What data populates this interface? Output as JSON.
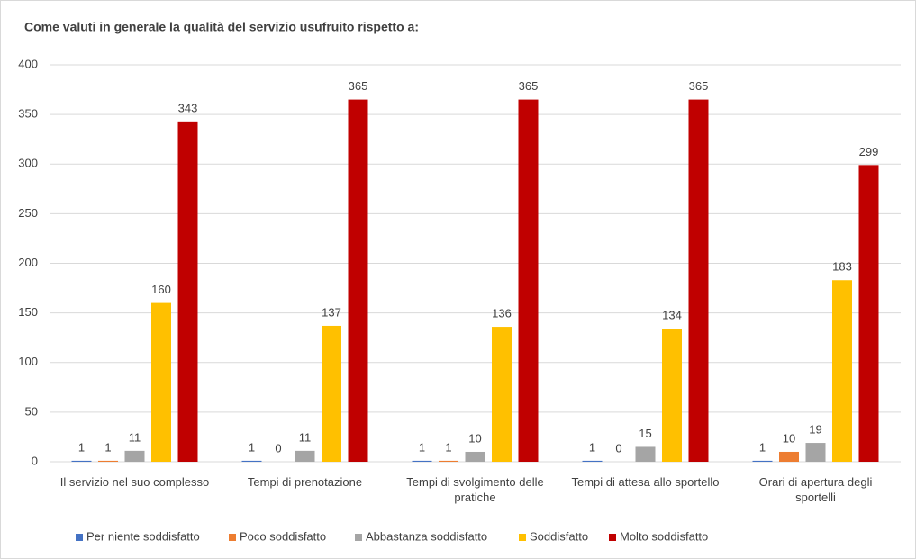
{
  "chart_data": {
    "type": "bar",
    "title": "Come valuti in generale la qualità del servizio usufruito rispetto a:",
    "categories": [
      "Il servizio nel suo complesso",
      "Tempi di prenotazione",
      "Tempi di svolgimento delle pratiche",
      "Tempi di attesa allo sportello",
      "Orari di apertura degli sportelli"
    ],
    "series": [
      {
        "name": "Per niente soddisfatto",
        "color": "#4472c4",
        "values": [
          1,
          1,
          1,
          1,
          1
        ]
      },
      {
        "name": "Poco soddisfatto",
        "color": "#ed7d31",
        "values": [
          1,
          0,
          1,
          0,
          10
        ]
      },
      {
        "name": "Abbastanza soddisfatto",
        "color": "#a5a5a5",
        "values": [
          11,
          11,
          10,
          15,
          19
        ]
      },
      {
        "name": "Soddisfatto",
        "color": "#ffc000",
        "values": [
          160,
          137,
          136,
          134,
          183
        ]
      },
      {
        "name": "Molto soddisfatto",
        "color": "#c00000",
        "values": [
          343,
          365,
          365,
          365,
          299
        ]
      }
    ],
    "ylim": [
      0,
      400
    ],
    "yticks": [
      0,
      50,
      100,
      150,
      200,
      250,
      300,
      350,
      400
    ],
    "grid": true,
    "legend": "bottom"
  }
}
